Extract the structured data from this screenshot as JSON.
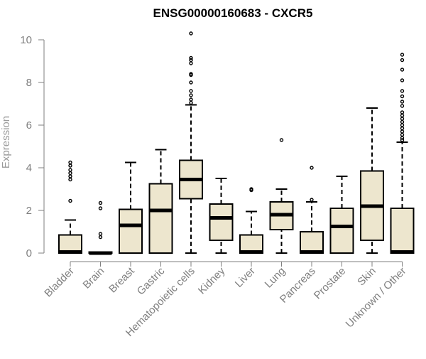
{
  "chart_data": {
    "type": "box",
    "title": "ENSG00000160683 - CXCR5",
    "xlabel": "",
    "ylabel": "Expression",
    "ylim": [
      0,
      10.5
    ],
    "yticks": [
      0,
      2,
      4,
      6,
      8,
      10
    ],
    "box_fill": "#ede6ce",
    "box_stroke": "#000000",
    "categories": [
      "Bladder",
      "Brain",
      "Breast",
      "Gastric",
      "Hematopoietic cells",
      "Kidney",
      "Liver",
      "Lung",
      "Pancreas",
      "Prostate",
      "Skin",
      "Unknown / Other"
    ],
    "series": [
      {
        "category": "Bladder",
        "min": 0,
        "q1": 0,
        "median": 0.05,
        "q3": 0.85,
        "max": 1.55,
        "outliers": [
          2.45,
          3.45,
          3.6,
          3.75,
          3.9,
          4.1,
          4.25
        ]
      },
      {
        "category": "Brain",
        "min": 0,
        "q1": 0,
        "median": 0,
        "q3": 0.05,
        "max": 0.05,
        "outliers": [
          0.75,
          0.9,
          2.1,
          2.35
        ]
      },
      {
        "category": "Breast",
        "min": 0,
        "q1": 0,
        "median": 1.3,
        "q3": 2.05,
        "max": 4.25,
        "outliers": []
      },
      {
        "category": "Gastric",
        "min": 0,
        "q1": 0,
        "median": 2.0,
        "q3": 3.25,
        "max": 4.85,
        "outliers": []
      },
      {
        "category": "Hematopoietic cells",
        "min": 0,
        "q1": 2.55,
        "median": 3.45,
        "q3": 4.35,
        "max": 6.95,
        "outliers": [
          7.05,
          7.2,
          7.4,
          7.6,
          8.0,
          8.35,
          8.4,
          8.9,
          9.05,
          9.15,
          10.3
        ]
      },
      {
        "category": "Kidney",
        "min": 0,
        "q1": 0.6,
        "median": 1.65,
        "q3": 2.3,
        "max": 3.5,
        "outliers": []
      },
      {
        "category": "Liver",
        "min": 0,
        "q1": 0,
        "median": 0.05,
        "q3": 0.85,
        "max": 1.95,
        "outliers": [
          2.95,
          3.0
        ]
      },
      {
        "category": "Lung",
        "min": 0,
        "q1": 1.1,
        "median": 1.8,
        "q3": 2.4,
        "max": 3.0,
        "outliers": [
          5.3
        ]
      },
      {
        "category": "Pancreas",
        "min": 0,
        "q1": 0,
        "median": 0.05,
        "q3": 1.0,
        "max": 2.4,
        "outliers": [
          2.5,
          4.0
        ]
      },
      {
        "category": "Prostate",
        "min": 0,
        "q1": 0,
        "median": 1.25,
        "q3": 2.1,
        "max": 3.6,
        "outliers": []
      },
      {
        "category": "Skin",
        "min": 0,
        "q1": 0.6,
        "median": 2.2,
        "q3": 3.85,
        "max": 6.8,
        "outliers": []
      },
      {
        "category": "Unknown / Other",
        "min": 0,
        "q1": 0,
        "median": 0.05,
        "q3": 2.1,
        "max": 5.2,
        "outliers": [
          5.3,
          5.4,
          5.55,
          5.7,
          5.85,
          6.0,
          6.15,
          6.3,
          6.45,
          6.6,
          6.9,
          7.1,
          7.35,
          7.6,
          8.1,
          8.6,
          9.05,
          9.3
        ]
      }
    ]
  }
}
